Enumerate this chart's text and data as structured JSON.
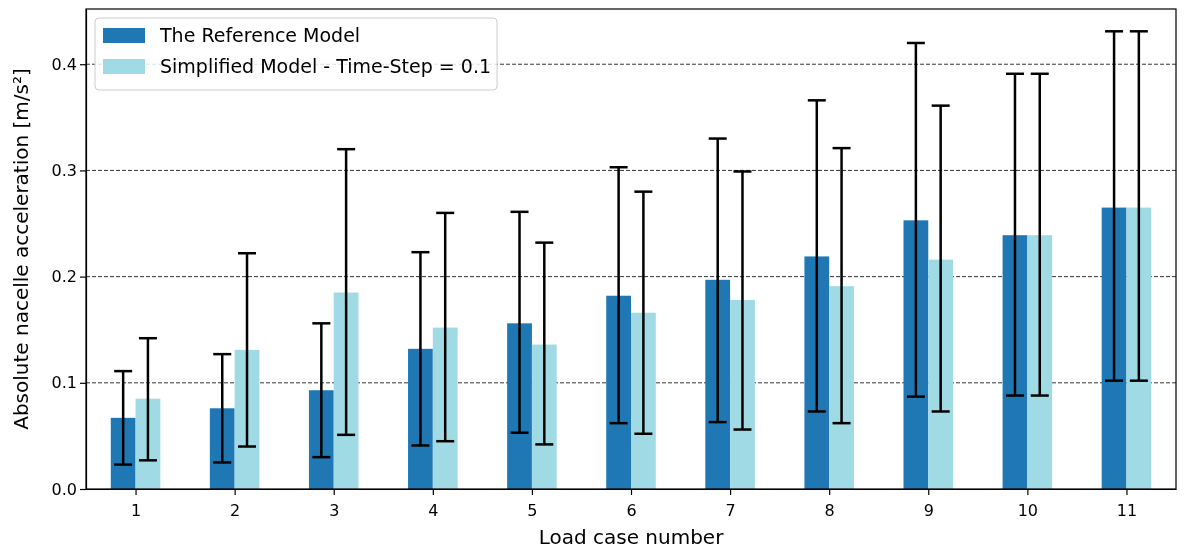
{
  "chart_data": {
    "type": "bar",
    "xlabel": "Load case number",
    "ylabel": "Absolute nacelle acceleration [m/s²]",
    "categories": [
      "1",
      "2",
      "3",
      "4",
      "5",
      "6",
      "7",
      "8",
      "9",
      "10",
      "11"
    ],
    "series": [
      {
        "name": "The Reference Model",
        "color": "#1f77b4",
        "values": [
          0.067,
          0.076,
          0.093,
          0.132,
          0.156,
          0.182,
          0.197,
          0.219,
          0.253,
          0.239,
          0.265
        ],
        "errors": [
          [
            0.023,
            0.111
          ],
          [
            0.025,
            0.127
          ],
          [
            0.03,
            0.156
          ],
          [
            0.041,
            0.223
          ],
          [
            0.053,
            0.261
          ],
          [
            0.062,
            0.303
          ],
          [
            0.063,
            0.33
          ],
          [
            0.073,
            0.366
          ],
          [
            0.087,
            0.42
          ],
          [
            0.088,
            0.391
          ],
          [
            0.102,
            0.431
          ]
        ]
      },
      {
        "name": "Simplified Model - Time-Step = 0.1",
        "color": "#9fdae5",
        "values": [
          0.085,
          0.131,
          0.185,
          0.152,
          0.136,
          0.166,
          0.178,
          0.191,
          0.216,
          0.239,
          0.265
        ],
        "errors": [
          [
            0.027,
            0.142
          ],
          [
            0.04,
            0.222
          ],
          [
            0.051,
            0.32
          ],
          [
            0.045,
            0.26
          ],
          [
            0.042,
            0.232
          ],
          [
            0.052,
            0.28
          ],
          [
            0.056,
            0.299
          ],
          [
            0.062,
            0.321
          ],
          [
            0.073,
            0.361
          ],
          [
            0.088,
            0.391
          ],
          [
            0.102,
            0.431
          ]
        ]
      }
    ],
    "ylim": [
      0,
      0.452
    ],
    "yticks": [
      {
        "value": 0,
        "label": "0.0"
      },
      0.1,
      0.2,
      0.3,
      0.4
    ],
    "grid": "y",
    "line_style": "dashed",
    "legend": "top left"
  }
}
